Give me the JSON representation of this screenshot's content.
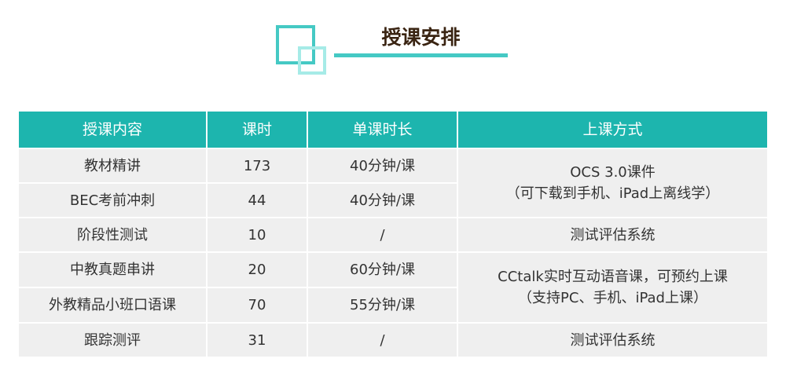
{
  "title": "授课安排",
  "colors": {
    "accent": "#1db5ae",
    "title": "#3a2412"
  },
  "table": {
    "headers": [
      "授课内容",
      "课时",
      "单课时长",
      "上课方式"
    ],
    "rows": [
      {
        "content": "教材精讲",
        "hours": "173",
        "duration": "40分钟/课"
      },
      {
        "content": "BEC考前冲刺",
        "hours": "44",
        "duration": "40分钟/课"
      },
      {
        "content": "阶段性测试",
        "hours": "10",
        "duration": "/"
      },
      {
        "content": "中教真题串讲",
        "hours": "20",
        "duration": "60分钟/课"
      },
      {
        "content": "外教精品小班口语课",
        "hours": "70",
        "duration": "55分钟/课"
      },
      {
        "content": "跟踪测评",
        "hours": "31",
        "duration": "/"
      }
    ],
    "methods": [
      {
        "line1": "OCS 3.0课件",
        "line2": "（可下载到手机、iPad上离线学）"
      },
      {
        "line1": "测试评估系统"
      },
      {
        "line1": "CCtalk实时互动语音课，可预约上课",
        "line2": "（支持PC、手机、iPad上课）"
      },
      {
        "line1": "测试评估系统"
      }
    ]
  }
}
